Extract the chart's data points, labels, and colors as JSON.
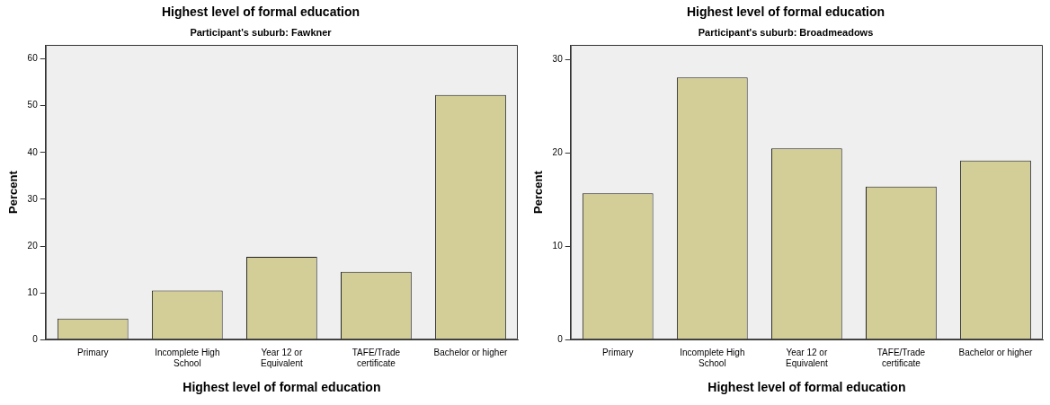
{
  "chart_data": [
    {
      "type": "bar",
      "title": "Highest level of formal education",
      "subtitle": "Participant's suburb: Fawkner",
      "xlabel": "Highest level of formal education",
      "ylabel": "Percent",
      "categories": [
        "Primary",
        "Incomplete High School",
        "Year 12 or Equivalent",
        "TAFE/Trade certificate",
        "Bachelor or higher"
      ],
      "values": [
        4.5,
        10.5,
        17.7,
        14.5,
        52.3
      ],
      "color": "#d3ce97",
      "ylim": [
        0,
        63
      ],
      "yticks": [
        0,
        10,
        20,
        30,
        40,
        50,
        60
      ],
      "grid": false,
      "legend": false
    },
    {
      "type": "bar",
      "title": "Highest level of formal education",
      "subtitle": "Participant's suburb: Broadmeadows",
      "xlabel": "Highest level of formal education",
      "ylabel": "Percent",
      "categories": [
        "Primary",
        "Incomplete High School",
        "Year 12 or Equivalent",
        "TAFE/Trade certificate",
        "Bachelor or higher"
      ],
      "values": [
        15.7,
        28.1,
        20.5,
        16.4,
        19.2
      ],
      "color": "#d3ce97",
      "ylim": [
        0,
        31.6
      ],
      "yticks": [
        0,
        10,
        20,
        30
      ],
      "grid": false,
      "legend": false
    }
  ]
}
